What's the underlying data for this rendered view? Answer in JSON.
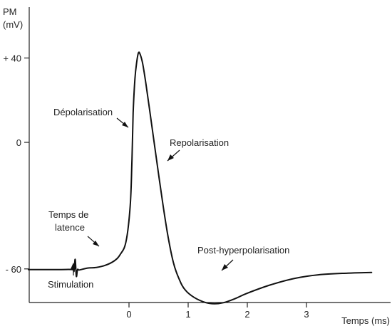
{
  "chart_data": {
    "type": "line",
    "title": "",
    "ylabel_line1": "PM",
    "ylabel_line2": "(mV)",
    "xlabel": "Temps (ms)",
    "x_ticks": [
      {
        "value": 0,
        "label": "0"
      },
      {
        "value": 1,
        "label": "1"
      },
      {
        "value": 2,
        "label": "2"
      },
      {
        "value": 3,
        "label": "3"
      }
    ],
    "y_ticks": [
      {
        "value": 40,
        "label": "+ 40"
      },
      {
        "value": 0,
        "label": "0"
      },
      {
        "value": -60,
        "label": "- 60"
      }
    ],
    "xlim": [
      -1.7,
      4.3
    ],
    "ylim": [
      -80,
      67
    ],
    "grid": false,
    "series": [
      {
        "values_xy": [
          [
            -1.7,
            -60.3
          ],
          [
            -1.2,
            -60.3
          ],
          [
            -0.96,
            -60.3
          ],
          [
            -0.93,
            -61
          ],
          [
            -0.91,
            -55.5
          ],
          [
            -0.89,
            -63.5
          ],
          [
            -0.87,
            -60.3
          ],
          [
            -0.84,
            -60.5
          ],
          [
            -0.7,
            -59.6
          ],
          [
            -0.55,
            -59.3
          ],
          [
            -0.4,
            -58.3
          ],
          [
            -0.25,
            -56.2
          ],
          [
            -0.15,
            -53.2
          ],
          [
            -0.05,
            -47
          ],
          [
            0.02,
            -30
          ],
          [
            0.05,
            -8
          ],
          [
            0.07,
            14
          ],
          [
            0.1,
            30
          ],
          [
            0.13,
            38
          ],
          [
            0.16,
            42.5
          ],
          [
            0.19,
            41.6
          ],
          [
            0.23,
            37.5
          ],
          [
            0.28,
            29
          ],
          [
            0.35,
            15
          ],
          [
            0.45,
            -5
          ],
          [
            0.55,
            -25
          ],
          [
            0.65,
            -43
          ],
          [
            0.75,
            -57
          ],
          [
            0.85,
            -65
          ],
          [
            0.95,
            -70
          ],
          [
            1.1,
            -73.5
          ],
          [
            1.3,
            -76
          ],
          [
            1.45,
            -76.5
          ],
          [
            1.6,
            -76
          ],
          [
            1.8,
            -74
          ],
          [
            2.0,
            -71.5
          ],
          [
            2.4,
            -67.5
          ],
          [
            2.8,
            -64.5
          ],
          [
            3.2,
            -62.8
          ],
          [
            3.7,
            -62
          ],
          [
            4.1,
            -61.7
          ]
        ]
      }
    ],
    "annotations": [
      {
        "text": "Dépolarisation",
        "x": 0.0,
        "y": 13
      },
      {
        "text": "Repolarisation",
        "x": 0.6,
        "y": -10
      },
      {
        "text": "Post-hyperpolarisation",
        "x": 1.6,
        "y": -73
      },
      {
        "text": "Temps de latence",
        "x": -0.35,
        "y": -58
      },
      {
        "text": "Stimulation",
        "x": -0.95,
        "y": -62
      }
    ],
    "annotation_labels": {
      "depolarisation": "Dépolarisation",
      "repolarisation": "Repolarisation",
      "post_hyperpolarisation": "Post-hyperpolarisation",
      "latence_line1": "Temps de",
      "latence_line2": "latence",
      "stimulation": "Stimulation"
    }
  }
}
